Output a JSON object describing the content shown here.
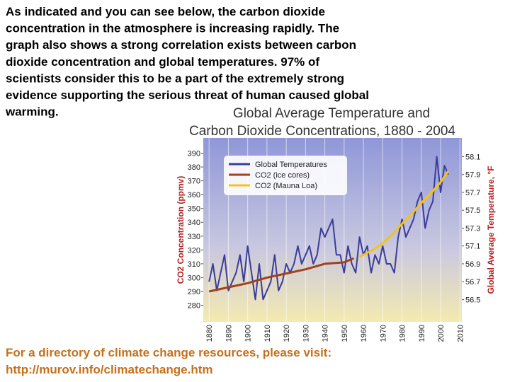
{
  "text": {
    "paragraph": [
      "As indicated and you can see below, the carbon dioxide",
      "concentration in the atmosphere is increasing rapidly.  The",
      "graph also shows a strong correlation exists between carbon",
      "dioxide concentration and global temperatures.  97% of",
      "scientists consider this to be a part of the extremely strong",
      "evidence supporting the serious threat of human caused global",
      "warming."
    ],
    "footer": [
      "For a directory of climate change resources, please visit:",
      "http://murov.info/climatechange.htm"
    ]
  },
  "chart_data": {
    "type": "line",
    "title": [
      "Global Average Temperature and",
      "Carbon Dioxide Concentrations, 1880 - 2004"
    ],
    "ylabel": "CO2 Concentration (ppmv)",
    "y2label": "Global Average Temperature, °F",
    "xlim": [
      1877,
      2011
    ],
    "xticks": [
      1880,
      1890,
      1900,
      1910,
      1920,
      1930,
      1940,
      1950,
      1960,
      1970,
      1980,
      1990,
      2000,
      2010
    ],
    "ylim": [
      268,
      401
    ],
    "yticks": [
      280,
      290,
      300,
      310,
      320,
      330,
      340,
      350,
      360,
      370,
      380,
      390
    ],
    "y2lim": [
      56.25,
      58.31
    ],
    "y2ticks": [
      56.5,
      56.7,
      56.9,
      57.1,
      57.3,
      57.5,
      57.7,
      57.9,
      58.1
    ],
    "grid": true,
    "legend": "upper left",
    "series": [
      {
        "name": "Global Temperatures",
        "color": "#3a3c9a",
        "axis": "y2",
        "x": [
          1880,
          1882,
          1884,
          1886,
          1888,
          1890,
          1892,
          1894,
          1896,
          1898,
          1900,
          1902,
          1904,
          1906,
          1908,
          1910,
          1912,
          1914,
          1916,
          1918,
          1920,
          1922,
          1924,
          1926,
          1928,
          1930,
          1932,
          1934,
          1936,
          1938,
          1940,
          1942,
          1944,
          1946,
          1948,
          1950,
          1952,
          1954,
          1956,
          1958,
          1960,
          1962,
          1964,
          1966,
          1968,
          1970,
          1972,
          1974,
          1976,
          1978,
          1980,
          1982,
          1984,
          1986,
          1988,
          1990,
          1992,
          1994,
          1996,
          1998,
          2000,
          2002,
          2004
        ],
        "values": [
          56.7,
          56.9,
          56.6,
          56.8,
          57.0,
          56.6,
          56.7,
          56.8,
          57.0,
          56.7,
          57.1,
          56.8,
          56.5,
          56.9,
          56.5,
          56.6,
          56.7,
          57.0,
          56.6,
          56.7,
          56.9,
          56.8,
          56.9,
          57.1,
          56.9,
          57.0,
          57.1,
          56.9,
          57.0,
          57.3,
          57.2,
          57.3,
          57.4,
          57.0,
          57.0,
          56.8,
          57.1,
          56.9,
          56.8,
          57.2,
          57.0,
          57.1,
          56.8,
          57.0,
          56.9,
          57.1,
          56.9,
          56.9,
          56.8,
          57.2,
          57.4,
          57.2,
          57.3,
          57.4,
          57.6,
          57.7,
          57.3,
          57.5,
          57.6,
          58.1,
          57.7,
          58.0,
          57.9
        ]
      },
      {
        "name": "CO2 (ice cores)",
        "color": "#a3411a",
        "x": [
          1880,
          1890,
          1900,
          1910,
          1920,
          1930,
          1940,
          1950,
          1955
        ],
        "values": [
          290,
          293,
          296,
          300,
          303,
          306,
          310,
          311,
          314
        ]
      },
      {
        "name": "CO2 (Mauna Loa)",
        "color": "#f3c316",
        "x": [
          1958,
          1965,
          1970,
          1975,
          1980,
          1985,
          1990,
          1995,
          2000,
          2004
        ],
        "values": [
          315,
          320,
          325,
          331,
          339,
          346,
          354,
          361,
          369,
          377
        ]
      }
    ]
  }
}
